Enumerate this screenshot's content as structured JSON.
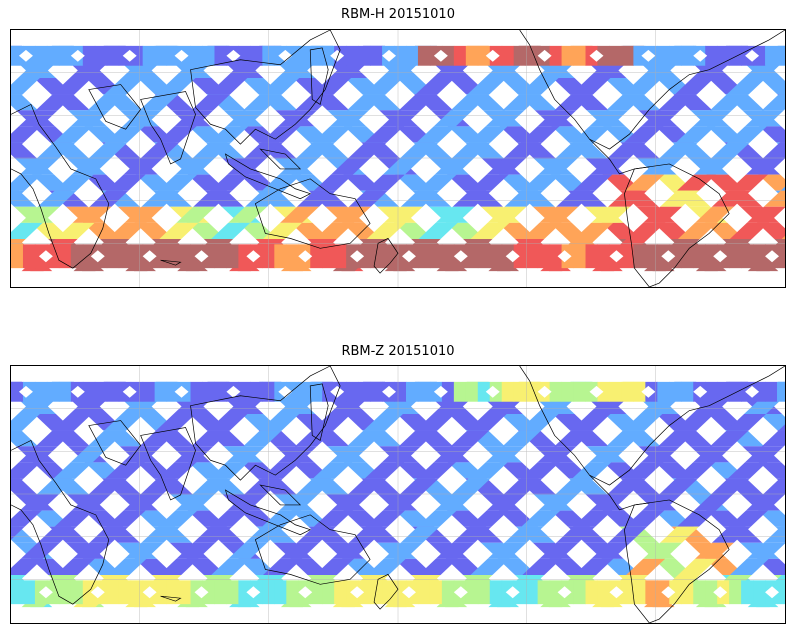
{
  "panels": [
    {
      "title": "RBM-H 20151010",
      "variable": "RBM-H",
      "date": "20151010",
      "polar_intensity": "high"
    },
    {
      "title": "RBM-Z 20151010",
      "variable": "RBM-Z",
      "date": "20151010",
      "polar_intensity": "low"
    }
  ],
  "colormap": {
    "name": "jet-like",
    "stops": [
      "#6060f0",
      "#5aa8ff",
      "#5fe6f0",
      "#b4f58c",
      "#f8f06a",
      "#ffa050",
      "#f05050",
      "#b06060"
    ]
  },
  "map": {
    "projection": "plate carree",
    "gridlines": true,
    "coastlines": true,
    "central_longitude": 180
  }
}
